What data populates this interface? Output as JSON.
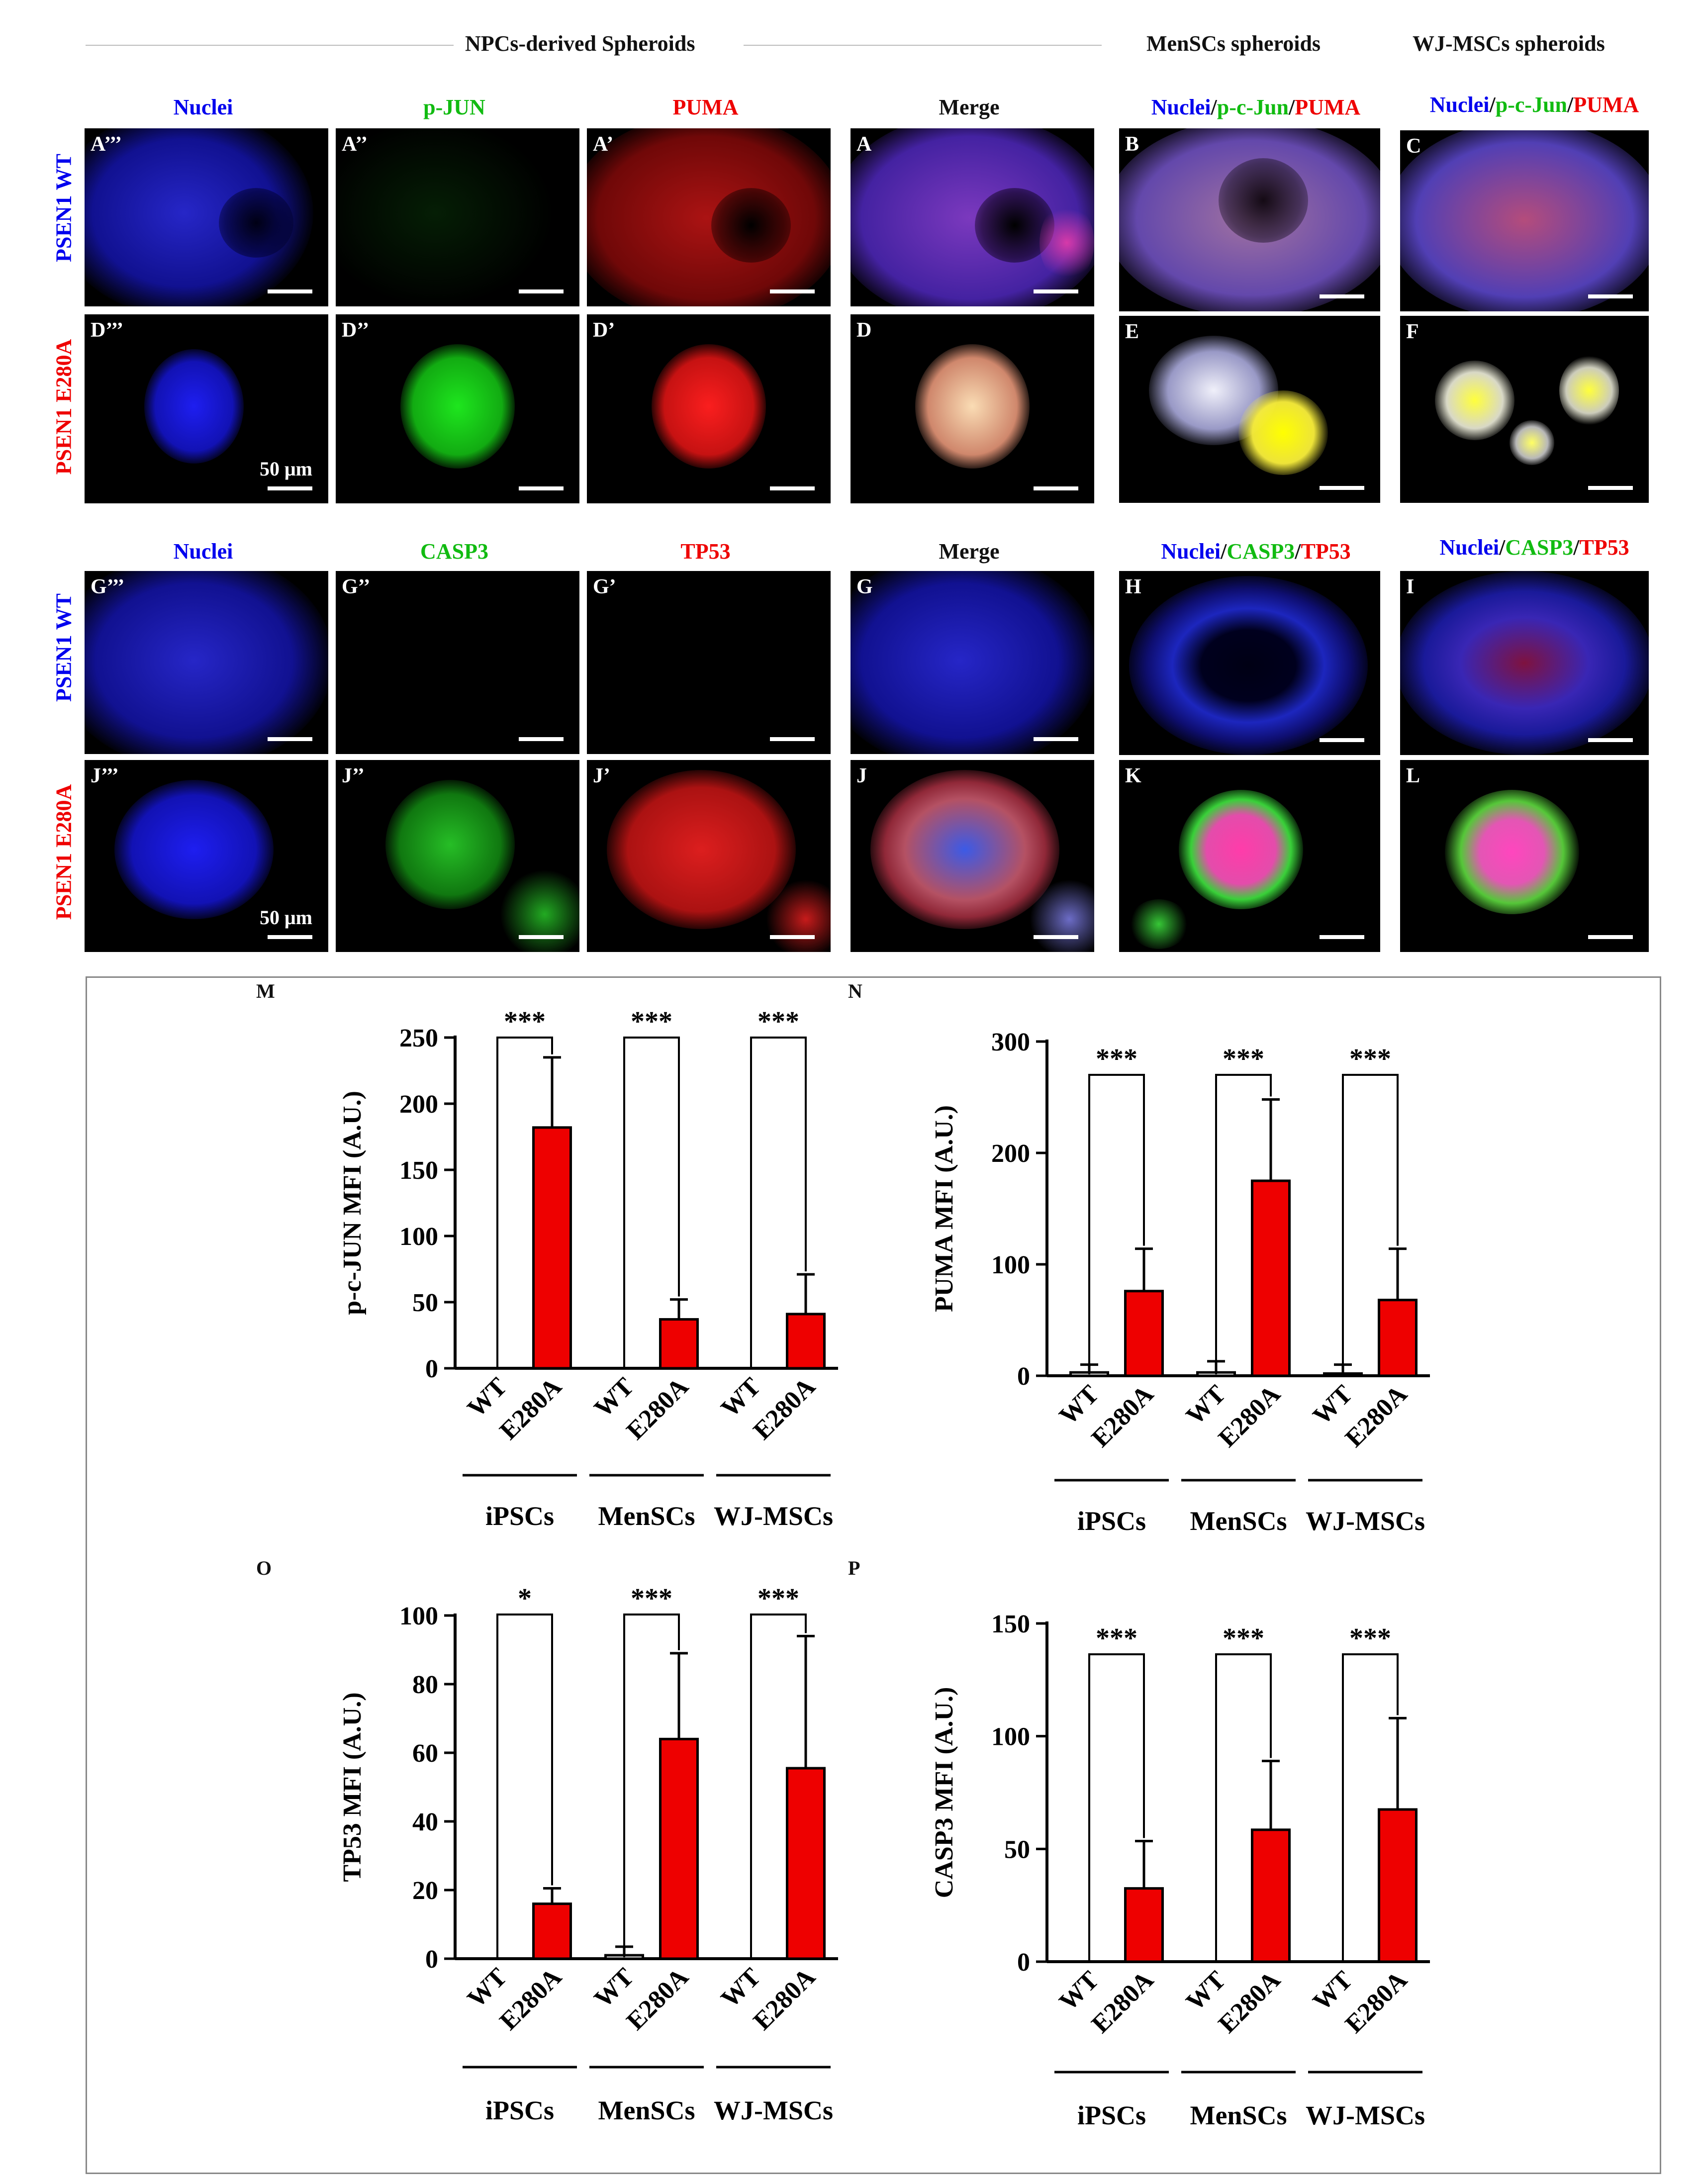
{
  "headers": {
    "npc": "NPCs-derived Spheroids",
    "mensc": "MenSCs spheroids",
    "wj": "WJ-MSCs spheroids"
  },
  "row_labels": {
    "wt": "PSEN1 WT",
    "e280a": "PSEN1 E280A"
  },
  "block1": {
    "col_labels": [
      "Nuclei",
      "p-JUN",
      "PUMA",
      "Merge"
    ],
    "merge_label_parts": [
      "Nuclei",
      "/",
      "p-c-Jun",
      "/",
      "PUMA"
    ],
    "panels": {
      "A3": "A’’’",
      "A2": "A’’",
      "A1": "A’",
      "A": "A",
      "B": "B",
      "C": "C",
      "D3": "D’’’",
      "D2": "D’’",
      "D1": "D’",
      "D": "D",
      "E": "E",
      "F": "F"
    },
    "scale_text": "50 μm"
  },
  "block2": {
    "col_labels": [
      "Nuclei",
      "CASP3",
      "TP53",
      "Merge"
    ],
    "merge_label_parts": [
      "Nuclei",
      "/",
      "CASP3",
      "/",
      "TP53"
    ],
    "panels": {
      "G3": "G’’’",
      "G2": "G’’",
      "G1": "G’",
      "G": "G",
      "H": "H",
      "I": "I",
      "J3": "J’’’",
      "J2": "J’’",
      "J1": "J’",
      "J": "J",
      "K": "K",
      "L": "L"
    },
    "scale_text": "50 μm"
  },
  "colors": {
    "blue": "#0000ee",
    "green": "#11cc11",
    "red": "#ee0000",
    "bar": "#ee0000"
  },
  "chart_data": [
    {
      "panel": "M",
      "type": "bar",
      "ylabel": "p-c-JUN MFI (A.U.)",
      "ylim": [
        0,
        250
      ],
      "yticks": [
        0,
        50,
        100,
        150,
        200,
        250
      ],
      "categories": [
        "WT",
        "E280A",
        "WT",
        "E280A",
        "WT",
        "E280A"
      ],
      "groups": [
        "iPSCs",
        "MenSCs",
        "WJ-MSCs"
      ],
      "values": [
        0,
        182,
        0,
        37,
        0,
        41
      ],
      "errors": [
        0,
        53,
        0,
        15,
        0,
        30
      ],
      "significance": [
        "***",
        "***",
        "***"
      ]
    },
    {
      "panel": "N",
      "type": "bar",
      "ylabel": "PUMA MFI (A.U.)",
      "ylim": [
        0,
        300
      ],
      "yticks": [
        0,
        100,
        200,
        300
      ],
      "categories": [
        "WT",
        "E280A",
        "WT",
        "E280A",
        "WT",
        "E280A"
      ],
      "groups": [
        "iPSCs",
        "MenSCs",
        "WJ-MSCs"
      ],
      "values": [
        3,
        76,
        3,
        175,
        2,
        68
      ],
      "errors": [
        7,
        38,
        10,
        73,
        8,
        46
      ],
      "significance": [
        "***",
        "***",
        "***"
      ]
    },
    {
      "panel": "O",
      "type": "bar",
      "ylabel": "TP53 MFI (A.U.)",
      "ylim": [
        0,
        100
      ],
      "yticks": [
        0,
        20,
        40,
        60,
        80,
        100
      ],
      "categories": [
        "WT",
        "E280A",
        "WT",
        "E280A",
        "WT",
        "E280A"
      ],
      "groups": [
        "iPSCs",
        "MenSCs",
        "WJ-MSCs"
      ],
      "values": [
        0,
        16,
        1,
        64,
        0,
        55.5
      ],
      "errors": [
        0,
        4.5,
        2.5,
        25,
        0,
        38.5
      ],
      "significance": [
        "*",
        "***",
        "***"
      ]
    },
    {
      "panel": "P",
      "type": "bar",
      "ylabel": "CASP3 MFI (A.U.)",
      "ylim": [
        0,
        150
      ],
      "yticks": [
        0,
        50,
        100,
        150
      ],
      "categories": [
        "WT",
        "E280A",
        "WT",
        "E280A",
        "WT",
        "E280A"
      ],
      "groups": [
        "iPSCs",
        "MenSCs",
        "WJ-MSCs"
      ],
      "values": [
        0,
        32.5,
        0,
        58.5,
        0,
        67.5
      ],
      "errors": [
        0,
        21,
        0,
        30.5,
        0,
        40.5
      ],
      "significance": [
        "***",
        "***",
        "***"
      ]
    }
  ]
}
